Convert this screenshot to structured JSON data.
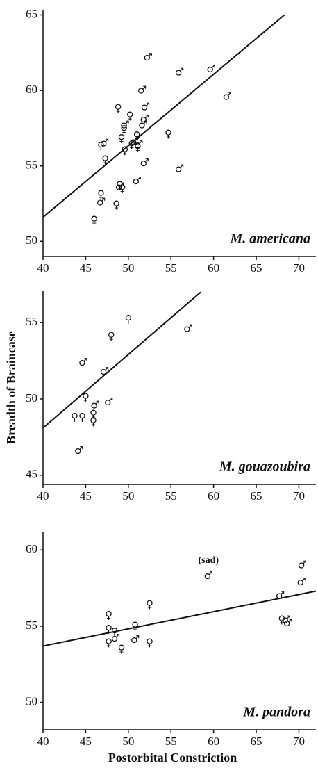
{
  "chart_data": [
    {
      "type": "scatter",
      "title": "M. americana",
      "xlim": [
        40,
        72
      ],
      "xticks": [
        40,
        45,
        50,
        55,
        60,
        65,
        70
      ],
      "ylim": [
        49,
        65.3
      ],
      "yticks": [
        50,
        55,
        60,
        65
      ],
      "series": [
        {
          "marker": "♂",
          "color": "#111",
          "x": [
            52.3,
            56.0,
            59.7,
            61.6,
            51.6,
            52.0,
            51.9,
            51.7,
            47.2,
            51.9,
            56.0,
            51.0,
            49.0,
            46.8,
            50.7,
            49.6,
            51.2
          ],
          "values": [
            62.2,
            61.2,
            61.4,
            59.6,
            60.0,
            58.9,
            58.1,
            57.7,
            56.5,
            55.2,
            54.8,
            54.0,
            53.6,
            52.6,
            56.6,
            57.7,
            56.4
          ]
        },
        {
          "marker": "♀",
          "color": "#111",
          "x": [
            48.8,
            50.2,
            49.5,
            49.2,
            51.0,
            49.6,
            50.4,
            51.1,
            47.3,
            46.8,
            49.0,
            49.3,
            48.6,
            46.0,
            54.7,
            46.8
          ],
          "values": [
            58.8,
            58.3,
            57.4,
            56.8,
            57.0,
            56.0,
            56.4,
            56.2,
            55.4,
            53.1,
            53.7,
            53.5,
            52.4,
            51.4,
            57.1,
            56.3
          ]
        }
      ],
      "trend": {
        "x": [
          40,
          68.3
        ],
        "y": [
          51.6,
          65
        ]
      }
    },
    {
      "type": "scatter",
      "title": "M. gouazoubira",
      "ylabel": "Breadth of Braincase",
      "xlim": [
        40,
        72
      ],
      "xticks": [
        40,
        45,
        50,
        55,
        60,
        65,
        70
      ],
      "ylim": [
        44.4,
        57.1
      ],
      "yticks": [
        45,
        50,
        55
      ],
      "series": [
        {
          "marker": "♂",
          "color": "#111",
          "x": [
            57.0,
            44.7,
            47.2,
            46.1,
            47.7,
            44.2
          ],
          "values": [
            54.6,
            52.4,
            51.8,
            49.6,
            49.8,
            46.6
          ]
        },
        {
          "marker": "♀",
          "color": "#111",
          "x": [
            50.0,
            48.0,
            45.0,
            43.7,
            44.6,
            45.9,
            45.9
          ],
          "values": [
            55.2,
            54.1,
            50.1,
            48.8,
            48.8,
            49.0,
            48.5
          ]
        }
      ],
      "trend": {
        "x": [
          40,
          58.5
        ],
        "y": [
          48.1,
          57.0
        ]
      }
    },
    {
      "type": "scatter",
      "title": "M. pandora",
      "xlabel": "Postorbital Constriction",
      "xlim": [
        40,
        72
      ],
      "xticks": [
        40,
        45,
        50,
        55,
        60,
        65,
        70
      ],
      "ylim": [
        48.2,
        61.2
      ],
      "yticks": [
        50,
        55,
        60
      ],
      "series": [
        {
          "marker": "♂",
          "color": "#111",
          "x": [
            59.4,
            67.8,
            70.4,
            70.3,
            68.5,
            68.7,
            50.8,
            48.5
          ],
          "values": [
            58.3,
            57.0,
            59.0,
            57.9,
            55.4,
            55.2,
            54.1,
            54.2
          ]
        },
        {
          "marker": "♀",
          "color": "#111",
          "x": [
            47.7,
            47.7,
            47.7,
            48.4,
            49.2,
            52.5,
            52.5,
            50.8,
            68.0
          ],
          "values": [
            55.7,
            54.8,
            53.9,
            54.6,
            53.5,
            56.4,
            53.9,
            55.0,
            55.4
          ]
        }
      ],
      "annotations": [
        {
          "text": "(sad)",
          "x": 59.4,
          "y": 59.3
        }
      ],
      "trend": {
        "x": [
          40,
          72
        ],
        "y": [
          53.7,
          57.3
        ]
      }
    }
  ]
}
